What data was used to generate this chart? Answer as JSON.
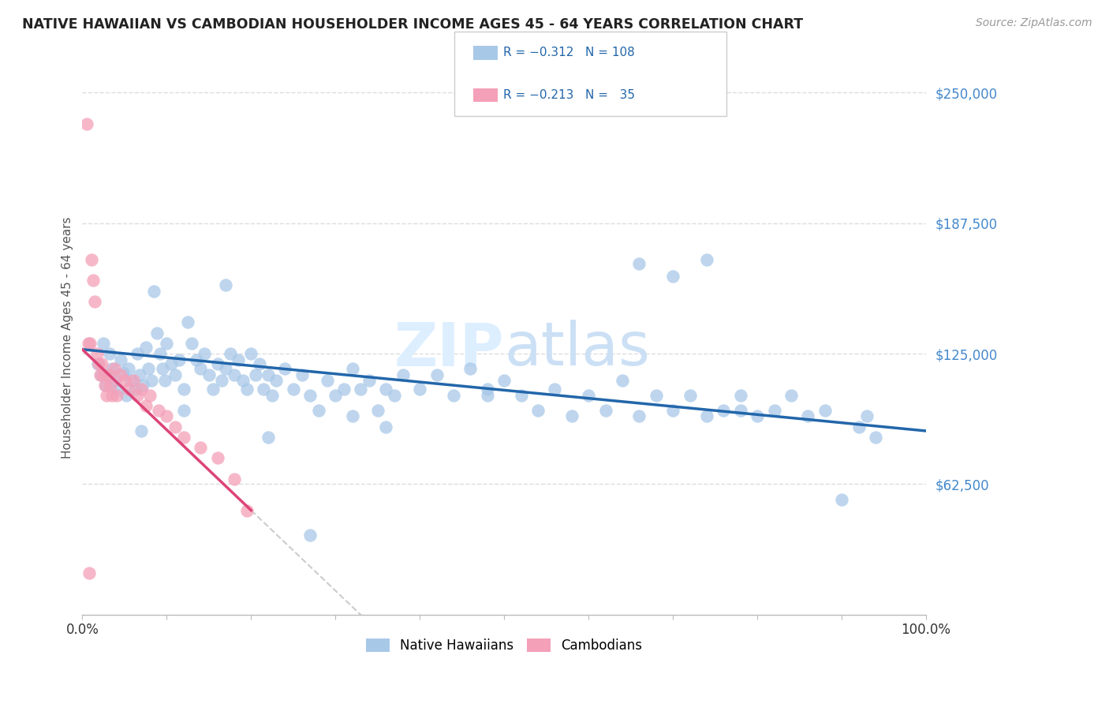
{
  "title": "NATIVE HAWAIIAN VS CAMBODIAN HOUSEHOLDER INCOME AGES 45 - 64 YEARS CORRELATION CHART",
  "source": "Source: ZipAtlas.com",
  "ylabel": "Householder Income Ages 45 - 64 years",
  "yticks_labels": [
    "$62,500",
    "$125,000",
    "$187,500",
    "$250,000"
  ],
  "yticks_values": [
    62500,
    125000,
    187500,
    250000
  ],
  "ylim": [
    0,
    265000
  ],
  "xlim": [
    0.0,
    1.0
  ],
  "r_blue": -0.312,
  "n_blue": 108,
  "r_pink": -0.213,
  "n_pink": 35,
  "blue_color": "#a8c8e8",
  "pink_color": "#f4a0b8",
  "trend_blue_color": "#2266aa",
  "trend_pink_color": "#dd4477",
  "trend_gray_color": "#cccccc",
  "background_color": "#ffffff",
  "grid_color": "#dddddd",
  "title_color": "#222222",
  "source_color": "#999999",
  "axis_label_color": "#555555",
  "tick_label_color_right": "#4488cc",
  "watermark_color": "#ddeeff",
  "legend_box_color": "#eeeeee",
  "blue_x": [
    0.018,
    0.022,
    0.025,
    0.028,
    0.032,
    0.035,
    0.038,
    0.042,
    0.045,
    0.048,
    0.052,
    0.055,
    0.058,
    0.062,
    0.065,
    0.068,
    0.072,
    0.075,
    0.078,
    0.082,
    0.085,
    0.088,
    0.092,
    0.095,
    0.098,
    0.1,
    0.105,
    0.11,
    0.115,
    0.12,
    0.125,
    0.13,
    0.135,
    0.14,
    0.145,
    0.15,
    0.155,
    0.16,
    0.165,
    0.17,
    0.175,
    0.18,
    0.185,
    0.19,
    0.195,
    0.2,
    0.205,
    0.21,
    0.215,
    0.22,
    0.225,
    0.23,
    0.24,
    0.25,
    0.26,
    0.27,
    0.28,
    0.29,
    0.3,
    0.31,
    0.32,
    0.33,
    0.34,
    0.35,
    0.36,
    0.37,
    0.38,
    0.4,
    0.42,
    0.44,
    0.46,
    0.48,
    0.5,
    0.52,
    0.54,
    0.56,
    0.58,
    0.6,
    0.62,
    0.64,
    0.66,
    0.68,
    0.7,
    0.72,
    0.74,
    0.76,
    0.78,
    0.8,
    0.82,
    0.84,
    0.86,
    0.88,
    0.9,
    0.92,
    0.93,
    0.94,
    0.66,
    0.7,
    0.74,
    0.78,
    0.48,
    0.36,
    0.27,
    0.32,
    0.22,
    0.17,
    0.12,
    0.07
  ],
  "blue_y": [
    120000,
    115000,
    130000,
    110000,
    125000,
    118000,
    112000,
    108000,
    122000,
    116000,
    105000,
    118000,
    112000,
    108000,
    125000,
    115000,
    110000,
    128000,
    118000,
    112000,
    155000,
    135000,
    125000,
    118000,
    112000,
    130000,
    120000,
    115000,
    122000,
    108000,
    140000,
    130000,
    122000,
    118000,
    125000,
    115000,
    108000,
    120000,
    112000,
    118000,
    125000,
    115000,
    122000,
    112000,
    108000,
    125000,
    115000,
    120000,
    108000,
    115000,
    105000,
    112000,
    118000,
    108000,
    115000,
    105000,
    98000,
    112000,
    105000,
    108000,
    118000,
    108000,
    112000,
    98000,
    108000,
    105000,
    115000,
    108000,
    115000,
    105000,
    118000,
    108000,
    112000,
    105000,
    98000,
    108000,
    95000,
    105000,
    98000,
    112000,
    95000,
    105000,
    98000,
    105000,
    95000,
    98000,
    105000,
    95000,
    98000,
    105000,
    95000,
    98000,
    55000,
    90000,
    95000,
    85000,
    168000,
    162000,
    170000,
    98000,
    105000,
    90000,
    38000,
    95000,
    85000,
    158000,
    98000,
    88000
  ],
  "pink_x": [
    0.005,
    0.007,
    0.009,
    0.011,
    0.013,
    0.015,
    0.017,
    0.019,
    0.021,
    0.023,
    0.025,
    0.027,
    0.029,
    0.031,
    0.033,
    0.035,
    0.038,
    0.041,
    0.045,
    0.05,
    0.055,
    0.06,
    0.065,
    0.07,
    0.075,
    0.08,
    0.09,
    0.1,
    0.11,
    0.12,
    0.14,
    0.16,
    0.18,
    0.195,
    0.008
  ],
  "pink_y": [
    235000,
    130000,
    130000,
    170000,
    160000,
    150000,
    125000,
    120000,
    115000,
    120000,
    115000,
    110000,
    105000,
    115000,
    110000,
    105000,
    118000,
    105000,
    115000,
    112000,
    108000,
    112000,
    105000,
    108000,
    100000,
    105000,
    98000,
    95000,
    90000,
    85000,
    80000,
    75000,
    65000,
    50000,
    20000
  ]
}
